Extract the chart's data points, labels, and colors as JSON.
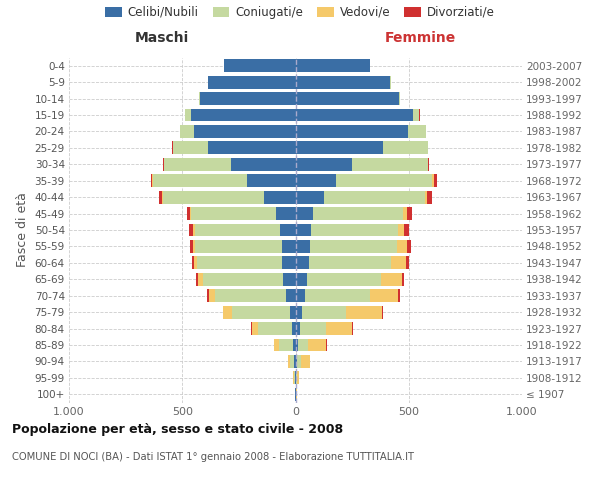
{
  "age_groups": [
    "100+",
    "95-99",
    "90-94",
    "85-89",
    "80-84",
    "75-79",
    "70-74",
    "65-69",
    "60-64",
    "55-59",
    "50-54",
    "45-49",
    "40-44",
    "35-39",
    "30-34",
    "25-29",
    "20-24",
    "15-19",
    "10-14",
    "5-9",
    "0-4"
  ],
  "birth_years": [
    "≤ 1907",
    "1908-1912",
    "1913-1917",
    "1918-1922",
    "1923-1927",
    "1928-1932",
    "1933-1937",
    "1938-1942",
    "1943-1947",
    "1948-1952",
    "1953-1957",
    "1958-1962",
    "1963-1967",
    "1968-1972",
    "1973-1977",
    "1978-1982",
    "1983-1987",
    "1988-1992",
    "1993-1997",
    "1998-2002",
    "2003-2007"
  ],
  "males": {
    "celibi": [
      2,
      3,
      5,
      10,
      15,
      25,
      40,
      55,
      60,
      60,
      70,
      85,
      140,
      215,
      285,
      385,
      450,
      460,
      420,
      385,
      315
    ],
    "coniugati": [
      2,
      5,
      20,
      65,
      150,
      255,
      315,
      355,
      375,
      385,
      375,
      375,
      445,
      415,
      295,
      155,
      60,
      28,
      5,
      2,
      2
    ],
    "vedovi": [
      0,
      2,
      8,
      20,
      28,
      38,
      28,
      22,
      12,
      8,
      7,
      4,
      4,
      2,
      2,
      2,
      1,
      1,
      0,
      0,
      0
    ],
    "divorziati": [
      0,
      0,
      0,
      2,
      3,
      4,
      8,
      8,
      8,
      12,
      18,
      14,
      14,
      8,
      4,
      2,
      1,
      1,
      0,
      0,
      0
    ]
  },
  "females": {
    "nubili": [
      1,
      4,
      8,
      12,
      18,
      28,
      42,
      52,
      58,
      62,
      68,
      78,
      128,
      178,
      248,
      388,
      498,
      518,
      458,
      418,
      328
    ],
    "coniugate": [
      2,
      4,
      18,
      45,
      115,
      195,
      285,
      325,
      365,
      385,
      385,
      395,
      445,
      425,
      335,
      195,
      78,
      28,
      5,
      2,
      2
    ],
    "vedove": [
      2,
      9,
      38,
      78,
      118,
      158,
      125,
      95,
      65,
      45,
      28,
      18,
      8,
      8,
      4,
      2,
      1,
      1,
      0,
      0,
      0
    ],
    "divorziate": [
      0,
      0,
      0,
      2,
      3,
      4,
      8,
      8,
      12,
      18,
      22,
      22,
      22,
      12,
      4,
      2,
      1,
      1,
      0,
      0,
      0
    ]
  },
  "colors": {
    "celibi": "#3a6ea5",
    "coniugati": "#c5d9a0",
    "vedovi": "#f5c96a",
    "divorziati": "#d03030"
  },
  "legend_labels": [
    "Celibi/Nubili",
    "Coniugati/e",
    "Vedovi/e",
    "Divorziati/e"
  ],
  "title": "Popolazione per età, sesso e stato civile - 2008",
  "subtitle": "COMUNE DI NOCI (BA) - Dati ISTAT 1° gennaio 2008 - Elaborazione TUTTITALIA.IT",
  "maschi_label": "Maschi",
  "femmine_label": "Femmine",
  "ylabel_left": "Fasce di età",
  "xlim": 1000,
  "bg_color": "#ffffff",
  "grid_color": "#cccccc"
}
